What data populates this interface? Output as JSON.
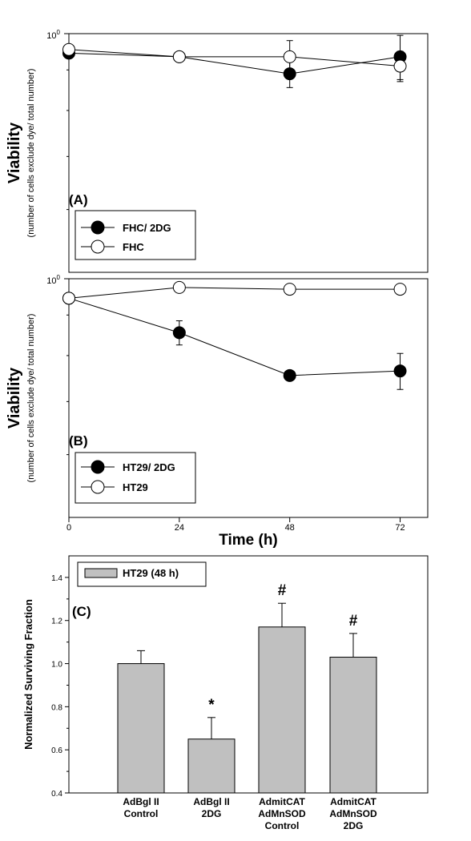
{
  "chart_data": [
    {
      "type": "line",
      "panel_label": "(A)",
      "ylabel": "Viability",
      "ylabel_sub": "(number of cells exclude dye/ total number)",
      "ytick_top": "10",
      "ytick_top_exp": "0",
      "yscale": "log",
      "ylim": [
        0.5,
        1.0
      ],
      "xlim": [
        0,
        78
      ],
      "x": [
        0,
        24,
        48,
        72
      ],
      "legend_position": "bottom-left",
      "series": [
        {
          "name": "FHC/ 2DG",
          "marker": "filled-circle",
          "values": [
            0.945,
            0.935,
            0.89,
            0.935
          ],
          "errors": [
            0.01,
            0.012,
            0.035,
            0.06
          ]
        },
        {
          "name": "FHC",
          "marker": "open-circle",
          "values": [
            0.955,
            0.935,
            0.935,
            0.91
          ],
          "errors": [
            0.012,
            0.012,
            0.045,
            0.04
          ]
        }
      ]
    },
    {
      "type": "line",
      "panel_label": "(B)",
      "ylabel": "Viability",
      "ylabel_sub": "(number of cells exclude dye/ total number)",
      "ytick_top": "10",
      "ytick_top_exp": "0",
      "yscale": "log",
      "ylim": [
        0.5,
        1.0
      ],
      "xlim": [
        0,
        78
      ],
      "x": [
        0,
        24,
        48,
        72
      ],
      "xticks": [
        "0",
        "24",
        "48",
        "72"
      ],
      "xlabel": "Time (h)",
      "legend_position": "bottom-left",
      "series": [
        {
          "name": "HT29/ 2DG",
          "marker": "filled-circle",
          "values": [
            0.945,
            0.855,
            0.755,
            0.765
          ],
          "errors": [
            0.012,
            0.03,
            0.0,
            0.04
          ]
        },
        {
          "name": "HT29",
          "marker": "open-circle",
          "values": [
            0.945,
            0.975,
            0.97,
            0.97
          ],
          "errors": [
            0.015,
            0.0,
            0.0,
            0.0
          ]
        }
      ]
    },
    {
      "type": "bar",
      "panel_label": "(C)",
      "ylabel": "Normalized Surviving Fraction",
      "ylim": [
        0.4,
        1.5
      ],
      "yticks": [
        "0.4",
        "0.6",
        "0.8",
        "1.0",
        "1.2",
        "1.4"
      ],
      "legend_position": "top-left",
      "series": [
        {
          "name": "HT29 (48 h)",
          "color": "#c0c0c0"
        }
      ],
      "categories": [
        [
          "AdBgl II",
          "Control"
        ],
        [
          "AdBgl II",
          "2DG"
        ],
        [
          "AdmitCAT",
          "AdMnSOD",
          "Control"
        ],
        [
          "AdmitCAT",
          "AdMnSOD",
          "2DG"
        ]
      ],
      "values": [
        1.0,
        0.65,
        1.17,
        1.03
      ],
      "errors": [
        0.06,
        0.1,
        0.11,
        0.11
      ],
      "annotations": [
        "",
        "*",
        "#",
        "#"
      ]
    }
  ]
}
